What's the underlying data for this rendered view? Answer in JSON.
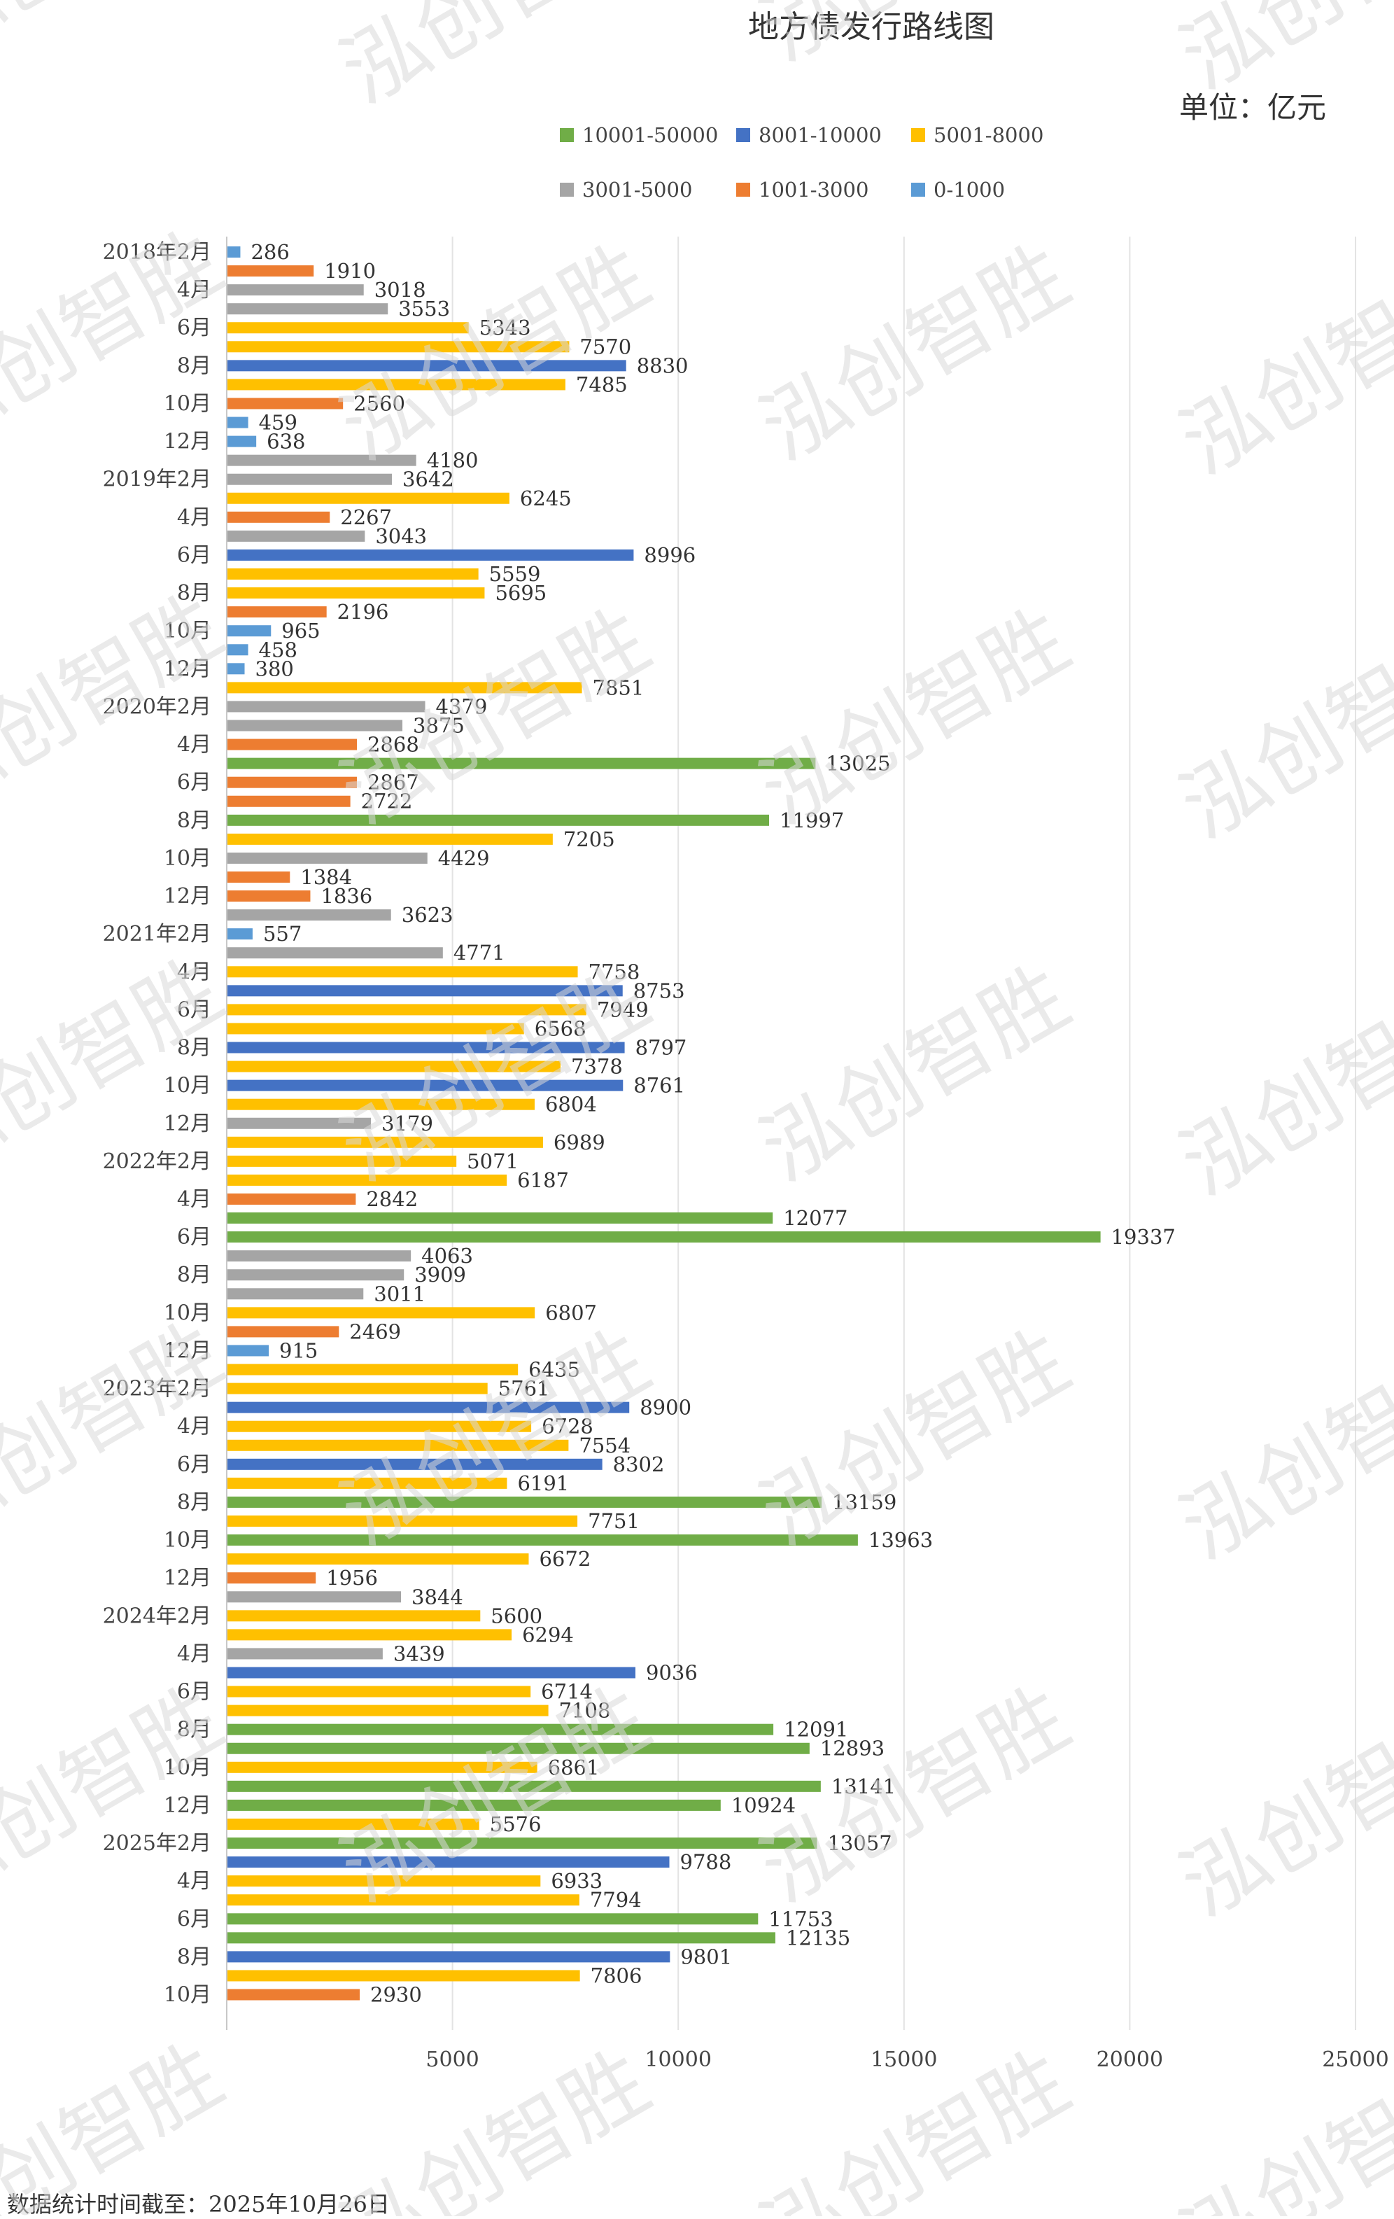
{
  "chart_data": {
    "type": "bar",
    "orientation": "horizontal",
    "title": "地方债发行路线图",
    "unit_label": "单位：亿元",
    "footnote": "数据统计时间截至：2025年10月26日",
    "watermark_text": "泓创智胜",
    "xlim": [
      0,
      25000
    ],
    "x_ticks": [
      "5000",
      "10000",
      "15000",
      "20000",
      "25000"
    ],
    "x_tick_values": [
      5000,
      10000,
      15000,
      20000,
      25000
    ],
    "grid": "vertical",
    "legend_position": "top",
    "legend": [
      {
        "label": "10001-50000",
        "color": "#70ad47"
      },
      {
        "label": "8001-10000",
        "color": "#4472c4"
      },
      {
        "label": "5001-8000",
        "color": "#ffc000"
      },
      {
        "label": "3001-5000",
        "color": "#a5a5a5"
      },
      {
        "label": "1001-3000",
        "color": "#ed7d31"
      },
      {
        "label": "0-1000",
        "color": "#5b9bd5"
      }
    ],
    "y_tick_labels": [
      "2018年2月",
      "4月",
      "6月",
      "8月",
      "10月",
      "12月",
      "2019年2月",
      "4月",
      "6月",
      "8月",
      "10月",
      "12月",
      "2020年2月",
      "4月",
      "6月",
      "8月",
      "10月",
      "12月",
      "2021年2月",
      "4月",
      "6月",
      "8月",
      "10月",
      "12月",
      "2022年2月",
      "4月",
      "6月",
      "8月",
      "10月",
      "12月",
      "2023年2月",
      "4月",
      "6月",
      "8月",
      "10月",
      "12月",
      "2024年2月",
      "4月",
      "6月",
      "8月",
      "10月",
      "12月",
      "2025年2月",
      "4月",
      "6月",
      "8月",
      "10月"
    ],
    "values": [
      286,
      1910,
      3018,
      3553,
      5343,
      7570,
      8830,
      7485,
      2560,
      459,
      638,
      4180,
      3642,
      6245,
      2267,
      3043,
      8996,
      5559,
      5695,
      2196,
      965,
      458,
      380,
      7851,
      4379,
      3875,
      2868,
      13025,
      2867,
      2722,
      11997,
      7205,
      4429,
      1384,
      1836,
      3623,
      557,
      4771,
      7758,
      8753,
      7949,
      6568,
      8797,
      7378,
      8761,
      6804,
      3179,
      6989,
      5071,
      6187,
      2842,
      12077,
      19337,
      4063,
      3909,
      3011,
      6807,
      2469,
      915,
      6435,
      5761,
      8900,
      6728,
      7554,
      8302,
      6191,
      13159,
      7751,
      13963,
      6672,
      1956,
      3844,
      5600,
      6294,
      3439,
      9036,
      6714,
      7108,
      12091,
      12893,
      6861,
      13141,
      10924,
      5576,
      13057,
      9788,
      6933,
      7794,
      11753,
      12135,
      9801,
      7806,
      2930
    ]
  }
}
